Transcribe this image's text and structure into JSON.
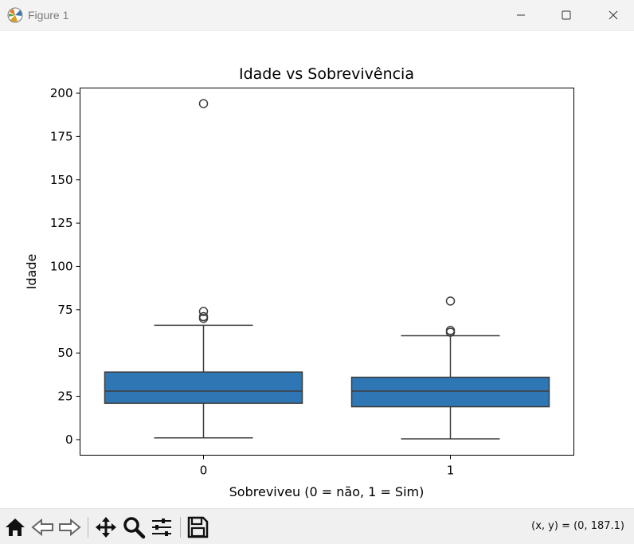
{
  "window": {
    "title": "Figure 1",
    "icon": "matplotlib-icon",
    "controls": [
      "minimize-icon",
      "maximize-icon",
      "close-icon"
    ]
  },
  "toolbar": {
    "buttons": [
      "home-icon",
      "back-arrow-icon",
      "forward-arrow-icon",
      "pan-icon",
      "zoom-icon",
      "configure-subplots-icon",
      "save-icon"
    ],
    "coord_readout": "(x, y) = (0, 187.1)"
  },
  "chart_data": {
    "type": "box",
    "title": "Idade vs Sobrevivência",
    "xlabel": "Sobreviveu (0 = não, 1 = Sim)",
    "ylabel": "Idade",
    "categories": [
      "0",
      "1"
    ],
    "ylim": [
      -9,
      203
    ],
    "yticks": [
      0,
      25,
      50,
      75,
      100,
      125,
      150,
      175,
      200
    ],
    "box_color": "#2f77b4",
    "edge_color": "#3d3d3d",
    "grid": false,
    "legend": "none",
    "boxes": [
      {
        "category": "0",
        "whislo": 1,
        "q1": 21,
        "median": 28,
        "q3": 39,
        "whishi": 66,
        "fliers": [
          70,
          71,
          74,
          194
        ]
      },
      {
        "category": "1",
        "whislo": 0.4,
        "q1": 19,
        "median": 28,
        "q3": 36,
        "whishi": 60,
        "fliers": [
          62,
          63,
          80
        ]
      }
    ]
  }
}
